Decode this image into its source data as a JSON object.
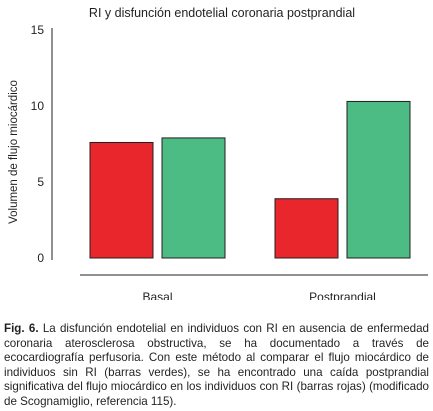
{
  "chart_data": {
    "type": "bar",
    "title": "RI y disfunción endotelial coronaria postprandial",
    "xlabel": "",
    "ylabel": "Volumen de flujo miocárdico",
    "categories": [
      "Basal",
      "Postprandial"
    ],
    "series": [
      {
        "values": [
          7.6,
          3.9
        ],
        "color": "#e8262c"
      },
      {
        "values": [
          7.9,
          10.3
        ],
        "color": "#4dbb84"
      }
    ],
    "yticks": [
      "15",
      "10",
      "5",
      "0"
    ],
    "ylim": [
      0,
      15
    ],
    "grid": false,
    "legend": "none"
  },
  "caption": {
    "label": "Fig. 6.",
    "text": "La disfunción endotelial en individuos con RI en ausencia de enfermedad coronaria aterosclerosa obstructiva, se ha documentado a través de ecocardiografía perfusoria. Con este método al comparar el flujo miocárdico de individuos sin RI (barras verdes), se ha encontrado una caída postprandial significativa del flujo miocárdico en los individuos con RI (barras rojas) (modificado de Scognamiglio, referencia 115)."
  }
}
